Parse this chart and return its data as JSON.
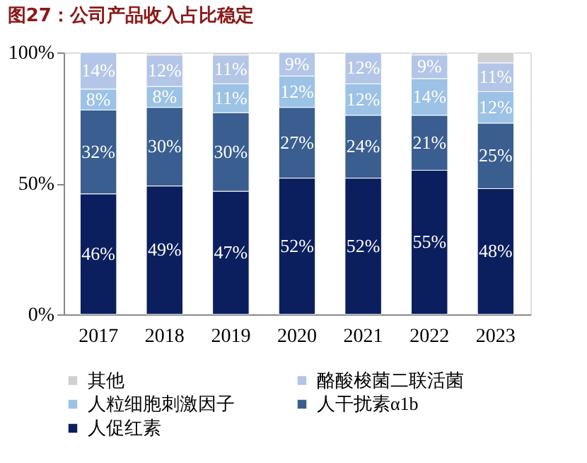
{
  "chart_data": {
    "type": "bar",
    "stacked": true,
    "title": "图27：公司产品收入占比稳定",
    "categories": [
      "2017",
      "2018",
      "2019",
      "2020",
      "2021",
      "2022",
      "2023"
    ],
    "series": [
      {
        "name": "人促红素",
        "color": "#0b1f5e",
        "values": [
          46,
          49,
          47,
          52,
          52,
          55,
          48
        ],
        "value_labels": [
          "46%",
          "49%",
          "47%",
          "52%",
          "52%",
          "55%",
          "48%"
        ]
      },
      {
        "name": "人干扰素α1b",
        "color": "#395e8f",
        "values": [
          32,
          30,
          30,
          27,
          24,
          21,
          25
        ],
        "value_labels": [
          "32%",
          "30%",
          "30%",
          "27%",
          "24%",
          "21%",
          "25%"
        ]
      },
      {
        "name": "人粒细胞刺激因子",
        "color": "#9cc2e5",
        "values": [
          8,
          8,
          11,
          12,
          12,
          14,
          12
        ],
        "value_labels": [
          "8%",
          "8%",
          "11%",
          "12%",
          "12%",
          "14%",
          "12%"
        ]
      },
      {
        "name": "酪酸梭菌二联活菌",
        "color": "#b4c6e7",
        "values": [
          14,
          12,
          11,
          9,
          12,
          9,
          11
        ],
        "value_labels": [
          "14%",
          "12%",
          "11%",
          "9%",
          "12%",
          "9%",
          "11%"
        ]
      },
      {
        "name": "其他",
        "color": "#d0d0d0",
        "values": [
          null,
          1,
          1,
          null,
          null,
          1,
          4
        ]
      }
    ],
    "ylim": [
      0,
      100
    ],
    "yticks": [
      {
        "value": 0,
        "label": "0%"
      },
      {
        "value": 50,
        "label": "50%"
      },
      {
        "value": 100,
        "label": "100%"
      }
    ],
    "grid": false,
    "legend": "bottom"
  }
}
